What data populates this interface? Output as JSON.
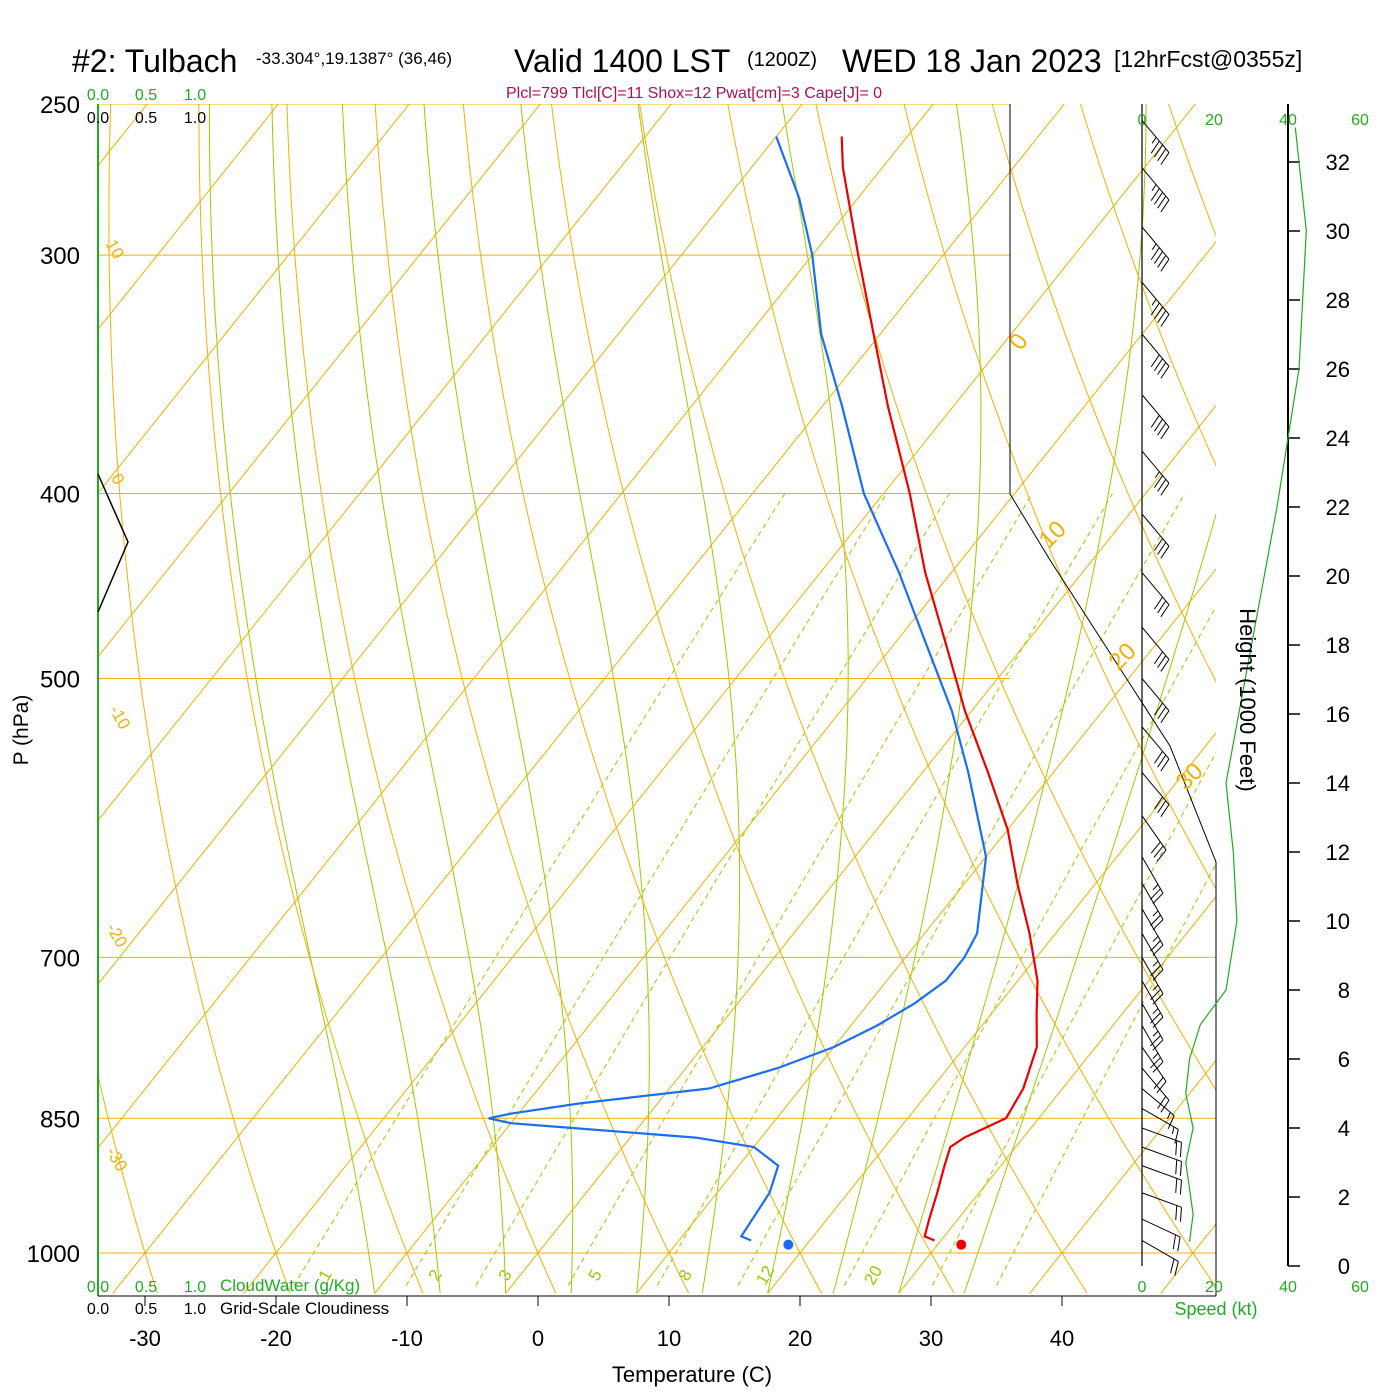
{
  "header": {
    "station": "#2: Tulbach",
    "coords": "-33.304°,19.1387° (36,46)",
    "valid": "Valid 1400 LST",
    "zulu": "(1200Z)",
    "date": "WED 18 Jan 2023",
    "forecast": "[12hrFcst@0355z]",
    "indices": "Plcl=799 Tlcl[C]=11 Shox=12 Pwat[cm]=3 Cape[J]= 0"
  },
  "colors": {
    "temperature": "#ee0000",
    "dewpoint": "#1a6ff0",
    "isobar": "#f2b000",
    "dry_adiabat": "#f2b000",
    "moist_adiabat": "#99cc00",
    "mixing_ratio": "#99cc00",
    "wind_speed": "#22aa22",
    "cloud": "#22aa22"
  },
  "chart_data": {
    "type": "line",
    "xlabel": "Temperature (C)",
    "ylabel": "P (hPa)",
    "x_ticks": [
      -30,
      -20,
      -10,
      0,
      10,
      20,
      30,
      40
    ],
    "pressure_ticks": [
      250,
      300,
      400,
      500,
      700,
      850,
      1000
    ],
    "height_label": "Height (1000 Feet)",
    "height_ticks": [
      0,
      2,
      4,
      6,
      8,
      10,
      12,
      14,
      16,
      18,
      20,
      22,
      24,
      26,
      28,
      30,
      32
    ],
    "dry_adiabat_labels": [
      "10",
      "0",
      "-10",
      "-20",
      "-30",
      "0",
      "10",
      "20",
      "30"
    ],
    "mixing_ratio_labels": [
      "1",
      "2",
      "3",
      "5",
      "8",
      "12",
      "20"
    ],
    "speed_label": "Speed (kt)",
    "speed_ticks_top": [
      "0",
      "20",
      "40",
      "60"
    ],
    "speed_ticks_bottom": [
      "0",
      "20",
      "40",
      "60"
    ],
    "cloud_water": {
      "label": "CloudWater (g/Kg)",
      "ticks": [
        "0.0",
        "0.5",
        "1.0"
      ]
    },
    "cloudiness": {
      "label": "Grid-Scale Cloudiness",
      "ticks": [
        "0.0",
        "0.5",
        "1.0"
      ]
    },
    "series": [
      {
        "key": "temperature",
        "pressure": [
          985,
          980,
          960,
          930,
          900,
          880,
          870,
          850,
          820,
          780,
          750,
          720,
          680,
          640,
          600,
          560,
          520,
          480,
          440,
          400,
          360,
          330,
          300,
          270,
          260
        ],
        "values": [
          29.5,
          28.5,
          27.8,
          26.8,
          25.7,
          25.0,
          25.5,
          27.5,
          27.0,
          25.5,
          23.5,
          21.5,
          18.0,
          14.0,
          10.0,
          5.0,
          -0.5,
          -6.0,
          -12.0,
          -18.0,
          -25.0,
          -30.5,
          -36.5,
          -43.0,
          -45.0
        ]
      },
      {
        "key": "dewpoint",
        "pressure": [
          985,
          980,
          960,
          930,
          900,
          880,
          870,
          860,
          855,
          850,
          845,
          835,
          820,
          800,
          780,
          760,
          740,
          720,
          700,
          680,
          620,
          560,
          520,
          480,
          440,
          400,
          360,
          330,
          300,
          280,
          260
        ],
        "values": [
          15.5,
          14.5,
          14.3,
          14.0,
          13.0,
          10.0,
          5.0,
          -5.0,
          -10.0,
          -12.0,
          -10.5,
          -6.0,
          3.0,
          7.0,
          10.0,
          12.0,
          13.5,
          14.5,
          14.5,
          14.0,
          10.0,
          3.5,
          -1.5,
          -7.5,
          -14.0,
          -21.5,
          -28.5,
          -34.5,
          -40.0,
          -44.5,
          -50.0
        ]
      }
    ],
    "surface_temperature": 31.8,
    "surface_dewpoint": 18.6,
    "wind_speed": {
      "height_kft": [
        0.7,
        1.5,
        3,
        4,
        5,
        6,
        7,
        8,
        10,
        12,
        14,
        18,
        22,
        26,
        30,
        33
      ],
      "kt": [
        13,
        14,
        12,
        14,
        12,
        13,
        16,
        23,
        26,
        25,
        23,
        30,
        37,
        43,
        45,
        42
      ]
    },
    "wind_barbs": [
      {
        "p": 985,
        "speed": 20,
        "dir": 300
      },
      {
        "p": 960,
        "speed": 20,
        "dir": 295
      },
      {
        "p": 930,
        "speed": 20,
        "dir": 290
      },
      {
        "p": 900,
        "speed": 20,
        "dir": 290
      },
      {
        "p": 880,
        "speed": 20,
        "dir": 290
      },
      {
        "p": 860,
        "speed": 20,
        "dir": 290
      },
      {
        "p": 840,
        "speed": 15,
        "dir": 300
      },
      {
        "p": 820,
        "speed": 15,
        "dir": 310
      },
      {
        "p": 800,
        "speed": 20,
        "dir": 320
      },
      {
        "p": 780,
        "speed": 20,
        "dir": 325
      },
      {
        "p": 760,
        "speed": 25,
        "dir": 330
      },
      {
        "p": 740,
        "speed": 25,
        "dir": 330
      },
      {
        "p": 720,
        "speed": 25,
        "dir": 330
      },
      {
        "p": 700,
        "speed": 25,
        "dir": 330
      },
      {
        "p": 680,
        "speed": 25,
        "dir": 330
      },
      {
        "p": 660,
        "speed": 25,
        "dir": 330
      },
      {
        "p": 640,
        "speed": 25,
        "dir": 330
      },
      {
        "p": 620,
        "speed": 25,
        "dir": 330
      },
      {
        "p": 590,
        "speed": 30,
        "dir": 325
      },
      {
        "p": 560,
        "speed": 30,
        "dir": 320
      },
      {
        "p": 530,
        "speed": 30,
        "dir": 320
      },
      {
        "p": 500,
        "speed": 30,
        "dir": 320
      },
      {
        "p": 470,
        "speed": 30,
        "dir": 320
      },
      {
        "p": 440,
        "speed": 30,
        "dir": 320
      },
      {
        "p": 410,
        "speed": 30,
        "dir": 320
      },
      {
        "p": 380,
        "speed": 35,
        "dir": 320
      },
      {
        "p": 355,
        "speed": 40,
        "dir": 320
      },
      {
        "p": 330,
        "speed": 40,
        "dir": 320
      },
      {
        "p": 310,
        "speed": 45,
        "dir": 320
      },
      {
        "p": 290,
        "speed": 45,
        "dir": 320
      },
      {
        "p": 270,
        "speed": 45,
        "dir": 320
      },
      {
        "p": 255,
        "speed": 45,
        "dir": 320
      }
    ]
  }
}
